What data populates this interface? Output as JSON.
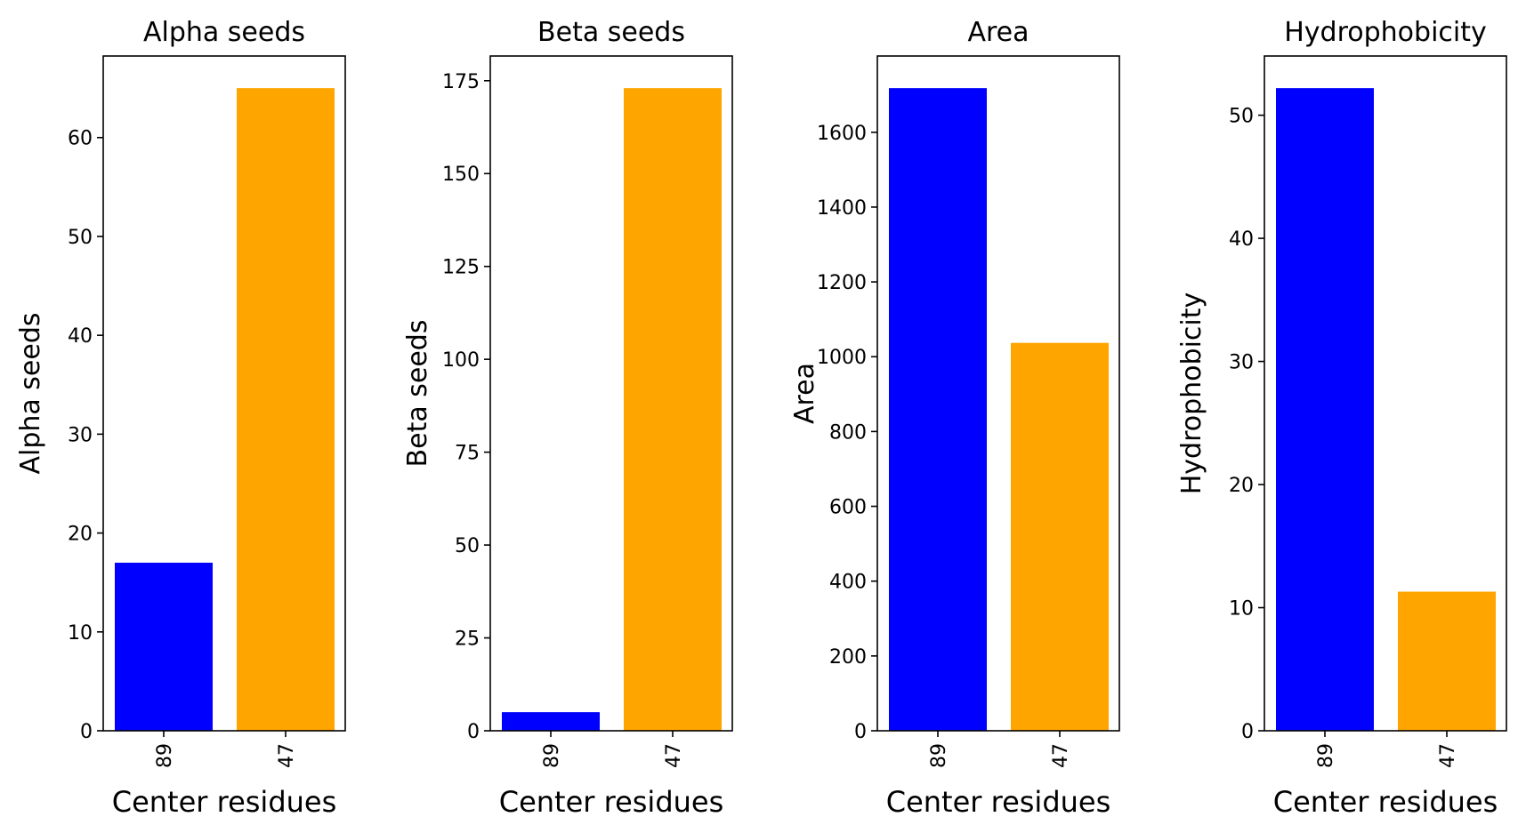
{
  "chart_data": [
    {
      "type": "bar",
      "title": "Alpha seeds",
      "xlabel": "Center residues",
      "ylabel": "Alpha seeds",
      "categories": [
        "89",
        "47"
      ],
      "values": [
        17,
        65
      ],
      "colors": [
        "#0000ff",
        "#ffa500"
      ],
      "ylim": [
        0,
        68.25
      ],
      "yticks": [
        0,
        10,
        20,
        30,
        40,
        50,
        60
      ],
      "ytick_labels": [
        "0",
        "10",
        "20",
        "30",
        "40",
        "50",
        "60"
      ],
      "grid": false
    },
    {
      "type": "bar",
      "title": "Beta seeds",
      "xlabel": "Center residues",
      "ylabel": "Beta seeds",
      "categories": [
        "89",
        "47"
      ],
      "values": [
        5,
        173
      ],
      "colors": [
        "#0000ff",
        "#ffa500"
      ],
      "ylim": [
        0,
        181.65
      ],
      "yticks": [
        0,
        25,
        50,
        75,
        100,
        125,
        150,
        175
      ],
      "ytick_labels": [
        "0",
        "25",
        "50",
        "75",
        "100",
        "125",
        "150",
        "175"
      ],
      "grid": false
    },
    {
      "type": "bar",
      "title": "Area",
      "xlabel": "Center residues",
      "ylabel": "Area",
      "categories": [
        "89",
        "47"
      ],
      "values": [
        1718,
        1037
      ],
      "colors": [
        "#0000ff",
        "#ffa500"
      ],
      "ylim": [
        0,
        1803.9
      ],
      "yticks": [
        0,
        200,
        400,
        600,
        800,
        1000,
        1200,
        1400,
        1600
      ],
      "ytick_labels": [
        "0",
        "200",
        "400",
        "600",
        "800",
        "1000",
        "1200",
        "1400",
        "1600"
      ],
      "grid": false
    },
    {
      "type": "bar",
      "title": "Hydrophobicity",
      "xlabel": "Center residues",
      "ylabel": "Hydrophobicity",
      "categories": [
        "89",
        "47"
      ],
      "values": [
        52.2,
        11.3
      ],
      "colors": [
        "#0000ff",
        "#ffa500"
      ],
      "ylim": [
        0,
        54.81
      ],
      "yticks": [
        0,
        10,
        20,
        30,
        40,
        50
      ],
      "ytick_labels": [
        "0",
        "10",
        "20",
        "30",
        "40",
        "50"
      ],
      "grid": false
    }
  ]
}
